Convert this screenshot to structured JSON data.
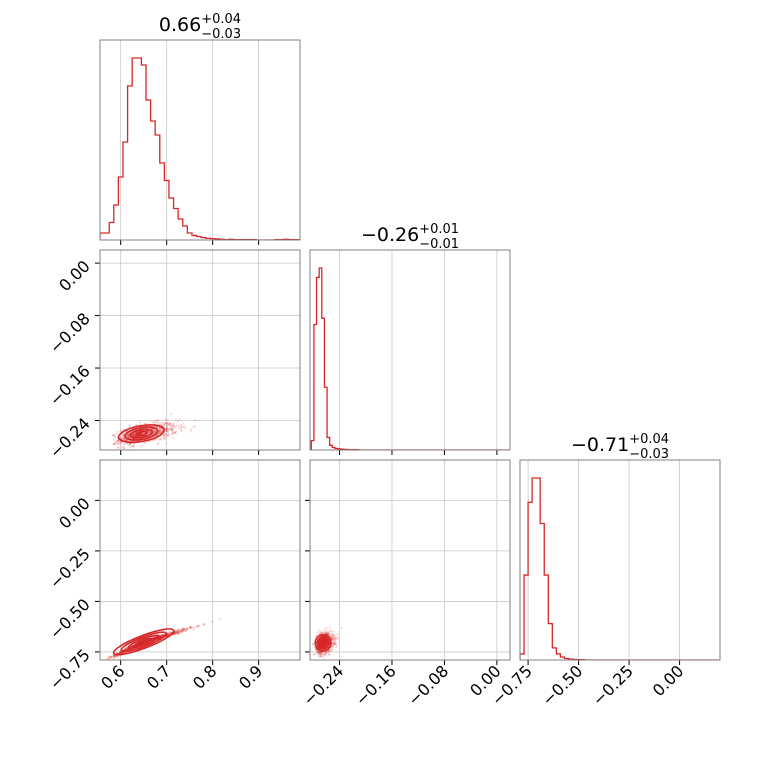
{
  "colors": {
    "series": "#d62728",
    "grid": "#c8c8c8",
    "frame": "#808080"
  },
  "chart_data": {
    "type": "corner",
    "parameters": [
      {
        "title": {
          "main": "0.66",
          "plus": "+0.04",
          "minus": "−0.03"
        },
        "range": [
          0.555,
          0.99
        ],
        "ticks": [
          0.6,
          0.7,
          0.8,
          0.9
        ],
        "tick_labels": [
          "0.6",
          "0.7",
          "0.8",
          "0.9"
        ],
        "hist": {
          "start": 0.555,
          "step": 0.01,
          "counts": [
            2,
            2,
            5,
            10,
            18,
            28,
            44,
            52,
            52,
            50,
            40,
            34,
            30,
            22,
            17,
            12,
            9,
            6,
            4,
            2,
            1.3,
            1,
            0.7,
            0.5,
            0.4,
            0.3,
            0.2,
            0.1,
            0.2,
            0.1,
            0.1,
            0.1,
            0.1,
            0.1,
            0,
            0,
            0,
            0,
            0.1,
            0.1,
            0.2,
            0.1,
            0.1,
            0.1
          ]
        }
      },
      {
        "title": {
          "main": "−0.26",
          "plus": "+0.01",
          "minus": "−0.01"
        },
        "range": [
          -0.285,
          0.02
        ],
        "ticks": [
          -0.24,
          -0.16,
          -0.08,
          0.0
        ],
        "tick_labels": [
          "−0.24",
          "−0.16",
          "−0.08",
          "0.00"
        ],
        "hist": {
          "start": -0.283,
          "step": 0.004,
          "counts": [
            3,
            40,
            55,
            58,
            42,
            20,
            4,
            1.5,
            0.8,
            0.5,
            0.4,
            0.3,
            0.2,
            0.2,
            0.1,
            0.1,
            0.1,
            0.1,
            0,
            0,
            0,
            0,
            0,
            0,
            0,
            0,
            0,
            0,
            0,
            0,
            0,
            0,
            0,
            0,
            0,
            0,
            0,
            0,
            0,
            0,
            0,
            0,
            0,
            0,
            0,
            0,
            0,
            0,
            0,
            0,
            0,
            0,
            0,
            0,
            0,
            0,
            0,
            0,
            0,
            0,
            0,
            0,
            0,
            0,
            0,
            0,
            0,
            0,
            0,
            0,
            0,
            0,
            0,
            0,
            0,
            0
          ]
        }
      },
      {
        "title": {
          "main": "−0.71",
          "plus": "+0.04",
          "minus": "−0.03"
        },
        "range": [
          -0.79,
          0.2
        ],
        "ticks": [
          -0.75,
          -0.5,
          -0.25,
          0.0
        ],
        "tick_labels": [
          "−0.75",
          "−0.50",
          "−0.25",
          "0.00"
        ],
        "hist": {
          "start": -0.79,
          "step": 0.02,
          "counts": [
            2,
            28,
            52,
            60,
            60,
            45,
            28,
            12,
            4,
            2,
            1,
            0.5,
            0.3,
            0.2,
            0.1,
            0.1,
            0,
            0,
            0,
            0,
            0,
            0,
            0,
            0,
            0,
            0,
            0,
            0,
            0,
            0,
            0,
            0,
            0,
            0,
            0,
            0,
            0,
            0,
            0,
            0,
            0,
            0,
            0,
            0,
            0,
            0,
            0,
            0,
            0,
            0
          ]
        }
      }
    ],
    "pairs": [
      {
        "x": 0,
        "y": 1,
        "center": [
          0.645,
          -0.26
        ],
        "spread": [
          0.03,
          0.008
        ],
        "corr": 0.5,
        "contours": [
          [
            0.012,
            0.003
          ],
          [
            0.024,
            0.006
          ],
          [
            0.036,
            0.009
          ],
          [
            0.05,
            0.012
          ]
        ]
      },
      {
        "x": 0,
        "y": 2,
        "center": [
          0.65,
          -0.7
        ],
        "spread": [
          0.04,
          0.035
        ],
        "corr": 0.99,
        "contours": [
          [
            0.012,
            0.003
          ],
          [
            0.024,
            0.006
          ],
          [
            0.036,
            0.009
          ],
          [
            0.05,
            0.012
          ]
        ]
      },
      {
        "x": 1,
        "y": 2,
        "center": [
          -0.265,
          -0.705
        ],
        "spread": [
          0.006,
          0.025
        ],
        "corr": 0.2,
        "contours": [
          [
            0.003,
            0.01
          ],
          [
            0.006,
            0.018
          ],
          [
            0.009,
            0.028
          ],
          [
            0.012,
            0.04
          ]
        ]
      }
    ]
  }
}
